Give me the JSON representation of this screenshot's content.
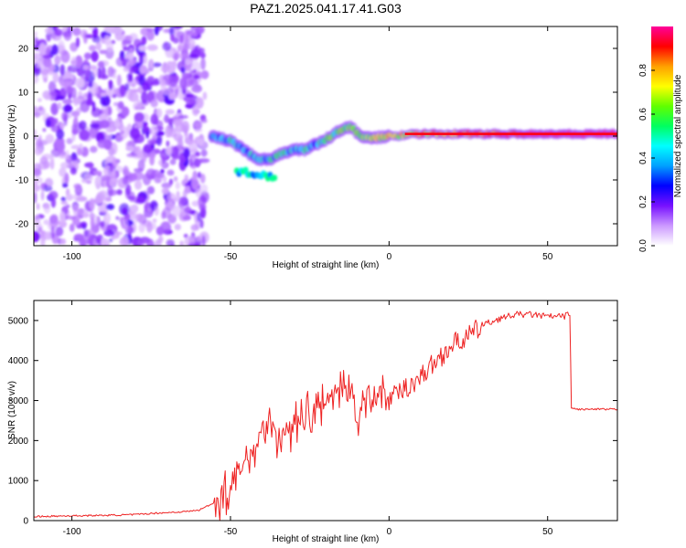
{
  "chart_data": [
    {
      "type": "heatmap",
      "title": "PAZ1.2025.041.17.41.G03",
      "xlabel": "Height of straight line (km)",
      "ylabel": "Frequency (Hz)",
      "xlim": [
        -112,
        72
      ],
      "ylim": [
        -25,
        25
      ],
      "xticks": [
        -100,
        -50,
        0,
        50
      ],
      "yticks": [
        20,
        10,
        0,
        -10,
        -20
      ],
      "colorbar": {
        "label": "Normalized spectral amplitude",
        "range": [
          0,
          1
        ],
        "ticks": [
          "0.0",
          "0.2",
          "0.4",
          "0.6",
          "0.8"
        ],
        "stops": [
          "#ffffff",
          "#cc99ff",
          "#7711ff",
          "#0000ff",
          "#00a0ff",
          "#00ffff",
          "#00ff60",
          "#60ff00",
          "#ffff00",
          "#ffa000",
          "#ff0000",
          "#ff0099"
        ]
      },
      "ridge": {
        "x": [
          -56,
          -50,
          -46,
          -42,
          -38,
          -34,
          -30,
          -26,
          -22,
          -18,
          -15,
          -12,
          -9,
          -5,
          0,
          10,
          20,
          40,
          72
        ],
        "y": [
          0,
          -1,
          -3,
          -5,
          -5.5,
          -4,
          -3,
          -3,
          -1.5,
          0,
          1.5,
          2,
          0,
          -0.5,
          0,
          0.5,
          0.5,
          0.5,
          0.5
        ]
      },
      "noise_region_x": [
        -112,
        -58
      ]
    },
    {
      "type": "line",
      "xlabel": "Height of straight line (km)",
      "ylabel": "SNR (10 * v/v)",
      "xlim": [
        -112,
        72
      ],
      "ylim": [
        0,
        5500
      ],
      "xticks": [
        -100,
        -50,
        0,
        50
      ],
      "yticks": [
        0,
        1000,
        2000,
        3000,
        4000,
        5000
      ],
      "color": "#ee2222",
      "series": [
        {
          "name": "SNR",
          "x": [
            -112,
            -100,
            -90,
            -80,
            -75,
            -70,
            -65,
            -60,
            -55,
            -50,
            -45,
            -40,
            -38,
            -35,
            -30,
            -27,
            -25,
            -22,
            -20,
            -18,
            -15,
            -12,
            -10,
            -5,
            0,
            5,
            10,
            15,
            20,
            25,
            30,
            35,
            40,
            45,
            50,
            55,
            57,
            57.5,
            60,
            65,
            72
          ],
          "y": [
            100,
            120,
            130,
            150,
            180,
            200,
            220,
            260,
            450,
            800,
            1500,
            2200,
            2600,
            2000,
            2400,
            2800,
            2600,
            3000,
            2800,
            3200,
            3300,
            3500,
            2400,
            3400,
            3000,
            3300,
            3600,
            4000,
            4400,
            4600,
            4900,
            5050,
            5150,
            5150,
            5100,
            5100,
            5150,
            2800,
            2780,
            2780,
            2780
          ]
        }
      ]
    }
  ]
}
